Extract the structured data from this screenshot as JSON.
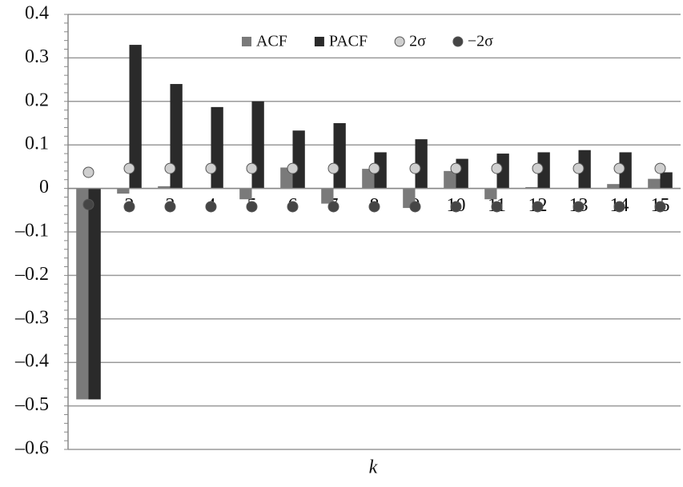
{
  "chart_data": {
    "type": "bar",
    "x_label": "k",
    "categories": [
      "1",
      "2",
      "3",
      "4",
      "5",
      "6",
      "7",
      "8",
      "9",
      "10",
      "11",
      "12",
      "13",
      "14",
      "15"
    ],
    "series": [
      {
        "name": "ACF",
        "color": "#7a7a7a",
        "values": [
          -0.485,
          -0.012,
          0.005,
          0,
          -0.025,
          0.048,
          -0.035,
          0.045,
          -0.045,
          0.04,
          -0.025,
          0.003,
          0,
          0.01,
          0.022
        ]
      },
      {
        "name": "PACF",
        "color": "#2a2a2a",
        "values": [
          -0.485,
          0.33,
          0.24,
          0.187,
          0.2,
          0.133,
          0.15,
          0.083,
          0.113,
          0.068,
          0.08,
          0.083,
          0.088,
          0.083,
          0.037
        ]
      },
      {
        "name": "2σ",
        "color": "#cfcfcf",
        "marker": "circle",
        "values": [
          0.037,
          0.046,
          0.046,
          0.046,
          0.046,
          0.046,
          0.046,
          0.046,
          0.046,
          0.046,
          0.046,
          0.046,
          0.046,
          0.046,
          0.046
        ]
      },
      {
        "name": "−2σ",
        "color": "#454545",
        "marker": "circle",
        "values": [
          -0.037,
          -0.042,
          -0.042,
          -0.042,
          -0.042,
          -0.042,
          -0.042,
          -0.042,
          -0.042,
          -0.042,
          -0.042,
          -0.042,
          -0.042,
          -0.042,
          -0.042
        ]
      }
    ],
    "ylim": [
      -0.6,
      0.4
    ],
    "yticks": [
      0.4,
      0.3,
      0.2,
      0.1,
      0,
      {
        "value": -0.1,
        "label": "–0.1"
      },
      {
        "value": -0.2,
        "label": "–0.2"
      },
      {
        "value": -0.3,
        "label": "–0.3"
      },
      {
        "value": -0.4,
        "label": "–0.4"
      },
      {
        "value": -0.5,
        "label": "–0.5"
      },
      {
        "value": -0.6,
        "label": "–0.6"
      }
    ],
    "grid": true,
    "legend": "top"
  }
}
